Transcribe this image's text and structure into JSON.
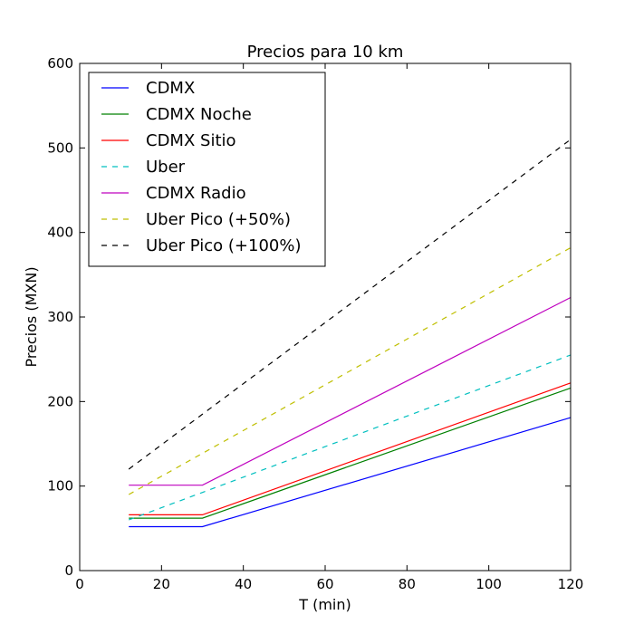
{
  "chart_data": {
    "type": "line",
    "title": "Precios para 10 km",
    "xlabel": "T (min)",
    "ylabel": "Precios (MXN)",
    "xlim": [
      0,
      120
    ],
    "ylim": [
      0,
      600
    ],
    "xticks": [
      0,
      20,
      40,
      60,
      80,
      100,
      120
    ],
    "yticks": [
      0,
      100,
      200,
      300,
      400,
      500,
      600
    ],
    "grid": false,
    "legend_position": "top-left",
    "series": [
      {
        "name": "CDMX",
        "color": "#0000ff",
        "style": "solid",
        "x": [
          12,
          30,
          120
        ],
        "y": [
          52,
          52,
          181
        ]
      },
      {
        "name": "CDMX Noche",
        "color": "#008000",
        "style": "solid",
        "x": [
          12,
          30,
          120
        ],
        "y": [
          62,
          62,
          216
        ]
      },
      {
        "name": "CDMX Sitio",
        "color": "#ff0000",
        "style": "solid",
        "x": [
          12,
          30,
          120
        ],
        "y": [
          66,
          66,
          222
        ]
      },
      {
        "name": "Uber",
        "color": "#00bfbf",
        "style": "dashed",
        "x": [
          12,
          120
        ],
        "y": [
          60,
          255
        ]
      },
      {
        "name": "CDMX Radio",
        "color": "#bf00bf",
        "style": "solid",
        "x": [
          12,
          30,
          120
        ],
        "y": [
          101,
          101,
          323
        ]
      },
      {
        "name": "Uber Pico (+50%)",
        "color": "#bfbf00",
        "style": "dashed",
        "x": [
          12,
          120
        ],
        "y": [
          90,
          382
        ]
      },
      {
        "name": "Uber Pico (+100%)",
        "color": "#000000",
        "style": "dashed",
        "x": [
          12,
          120
        ],
        "y": [
          120,
          510
        ]
      }
    ]
  }
}
